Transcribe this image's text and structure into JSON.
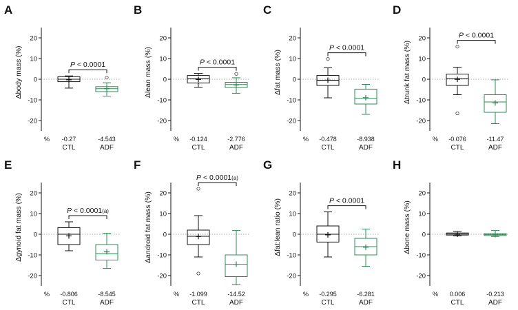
{
  "chart_data": [
    {
      "type": "box",
      "panel_label": "A",
      "ylabel": "Δbody mass (%)",
      "ylim": [
        -25,
        25
      ],
      "yticks": [
        20,
        10,
        0,
        -10,
        -20
      ],
      "pvalue": "P < 0.0001",
      "percent_label": "%",
      "groups": [
        {
          "name": "CTL",
          "color": "#111111",
          "min": -4.3,
          "q1": -1.2,
          "median": 0,
          "q3": 1.2,
          "max": 1.6,
          "mean": -0.27,
          "mean_label": "-0.27",
          "outliers": []
        },
        {
          "name": "ADF",
          "color": "#2e8b57",
          "min": -8.2,
          "q1": -6.0,
          "median": -4.6,
          "q3": -3.6,
          "max": -1.7,
          "mean": -4.543,
          "mean_label": "-4.543",
          "outliers": [
            0.8
          ]
        }
      ]
    },
    {
      "type": "box",
      "panel_label": "B",
      "ylabel": "Δlean mass (%)",
      "ylim": [
        -25,
        25
      ],
      "yticks": [
        20,
        10,
        0,
        -10,
        -20
      ],
      "pvalue": "P < 0.0001",
      "percent_label": "%",
      "groups": [
        {
          "name": "CTL",
          "color": "#111111",
          "min": -3.9,
          "q1": -1.8,
          "median": 0.3,
          "q3": 1.8,
          "max": 2.8,
          "mean": -0.124,
          "mean_label": "-0.124",
          "outliers": []
        },
        {
          "name": "ADF",
          "color": "#2e8b57",
          "min": -6.8,
          "q1": -4.0,
          "median": -2.6,
          "q3": -1.5,
          "max": 0.7,
          "mean": -2.776,
          "mean_label": "-2.776",
          "outliers": [
            2.6
          ]
        }
      ]
    },
    {
      "type": "box",
      "panel_label": "C",
      "ylabel": "Δfat mass (%)",
      "ylim": [
        -25,
        25
      ],
      "yticks": [
        20,
        10,
        0,
        -10,
        -20
      ],
      "pvalue": "P < 0.0001",
      "percent_label": "%",
      "groups": [
        {
          "name": "CTL",
          "color": "#111111",
          "min": -9.0,
          "q1": -3.0,
          "median": -0.5,
          "q3": 1.8,
          "max": 5.5,
          "mean": -0.478,
          "mean_label": "-0.478",
          "outliers": [
            9.8
          ]
        },
        {
          "name": "ADF",
          "color": "#2e8b57",
          "min": -17.0,
          "q1": -12.0,
          "median": -9.2,
          "q3": -4.8,
          "max": -2.5,
          "mean": -8.938,
          "mean_label": "-8.938",
          "outliers": []
        }
      ]
    },
    {
      "type": "box",
      "panel_label": "D",
      "ylabel": "Δtrunk fat mass (%)",
      "ylim": [
        -25,
        25
      ],
      "yticks": [
        20,
        10,
        0,
        -10,
        -20
      ],
      "pvalue": "P < 0.0001",
      "percent_label": "%",
      "groups": [
        {
          "name": "CTL",
          "color": "#111111",
          "min": -7.5,
          "q1": -3.0,
          "median": 0.3,
          "q3": 2.5,
          "max": 5.8,
          "mean": -0.076,
          "mean_label": "-0.076",
          "outliers": [
            15.8,
            -16.5
          ]
        },
        {
          "name": "ADF",
          "color": "#2e8b57",
          "min": -21.5,
          "q1": -16.0,
          "median": -11.0,
          "q3": -7.5,
          "max": -0.3,
          "mean": -11.47,
          "mean_label": "-11.47",
          "outliers": []
        }
      ]
    },
    {
      "type": "box",
      "panel_label": "E",
      "ylabel": "Δgynoid fat mass (%)",
      "ylim": [
        -25,
        25
      ],
      "yticks": [
        20,
        10,
        0,
        -10,
        -20
      ],
      "pvalue": "P < 0.0001",
      "pvalue_suffix": "(a)",
      "percent_label": "%",
      "groups": [
        {
          "name": "CTL",
          "color": "#111111",
          "min": -8.0,
          "q1": -5.0,
          "median": 0.0,
          "q3": 3.2,
          "max": 6.0,
          "mean": -0.806,
          "mean_label": "-0.806",
          "outliers": []
        },
        {
          "name": "ADF",
          "color": "#2e8b57",
          "min": -16.5,
          "q1": -12.5,
          "median": -9.5,
          "q3": -5.0,
          "max": 0.5,
          "mean": -8.545,
          "mean_label": "-8.545",
          "outliers": []
        }
      ]
    },
    {
      "type": "box",
      "panel_label": "F",
      "ylabel": "Δandroid fat mass (%)",
      "ylim": [
        -25,
        25
      ],
      "yticks": [
        20,
        10,
        0,
        -10,
        -20
      ],
      "pvalue": "P < 0.0001",
      "pvalue_suffix": "(a)",
      "percent_label": "%",
      "groups": [
        {
          "name": "CTL",
          "color": "#111111",
          "min": -11.0,
          "q1": -5.0,
          "median": -1.0,
          "q3": 2.0,
          "max": 9.0,
          "mean": -1.099,
          "mean_label": "-1.099",
          "outliers": [
            22,
            -19
          ]
        },
        {
          "name": "ADF",
          "color": "#2e8b57",
          "min": -24.5,
          "q1": -20.5,
          "median": -14.5,
          "q3": -10.0,
          "max": 1.8,
          "mean": -14.52,
          "mean_label": "-14.52",
          "outliers": []
        }
      ]
    },
    {
      "type": "box",
      "panel_label": "G",
      "ylabel": "Δfat:lean ratio (%)",
      "ylim": [
        -25,
        25
      ],
      "yticks": [
        20,
        10,
        0,
        -10,
        -20
      ],
      "pvalue": "P < 0.0001",
      "percent_label": "%",
      "groups": [
        {
          "name": "CTL",
          "color": "#111111",
          "min": -11.0,
          "q1": -3.8,
          "median": 0.0,
          "q3": 4.0,
          "max": 10.8,
          "mean": -0.295,
          "mean_label": "-0.295",
          "outliers": []
        },
        {
          "name": "ADF",
          "color": "#2e8b57",
          "min": -15.5,
          "q1": -10.0,
          "median": -6.0,
          "q3": -2.0,
          "max": 2.5,
          "mean": -6.281,
          "mean_label": "-6.281",
          "outliers": []
        }
      ]
    },
    {
      "type": "box",
      "panel_label": "H",
      "ylabel": "Δbone mass (%)",
      "ylim": [
        -25,
        25
      ],
      "yticks": [
        20,
        10,
        0,
        -10,
        -20
      ],
      "pvalue": "",
      "percent_label": "%",
      "groups": [
        {
          "name": "CTL",
          "color": "#111111",
          "min": -0.8,
          "q1": -0.4,
          "median": 0.1,
          "q3": 0.6,
          "max": 1.3,
          "mean": 0.006,
          "mean_label": "0.006",
          "outliers": []
        },
        {
          "name": "ADF",
          "color": "#2e8b57",
          "min": -1.1,
          "q1": -0.6,
          "median": -0.2,
          "q3": 0.3,
          "max": 1.8,
          "mean": -0.213,
          "mean_label": "-0.213",
          "outliers": []
        }
      ]
    }
  ]
}
